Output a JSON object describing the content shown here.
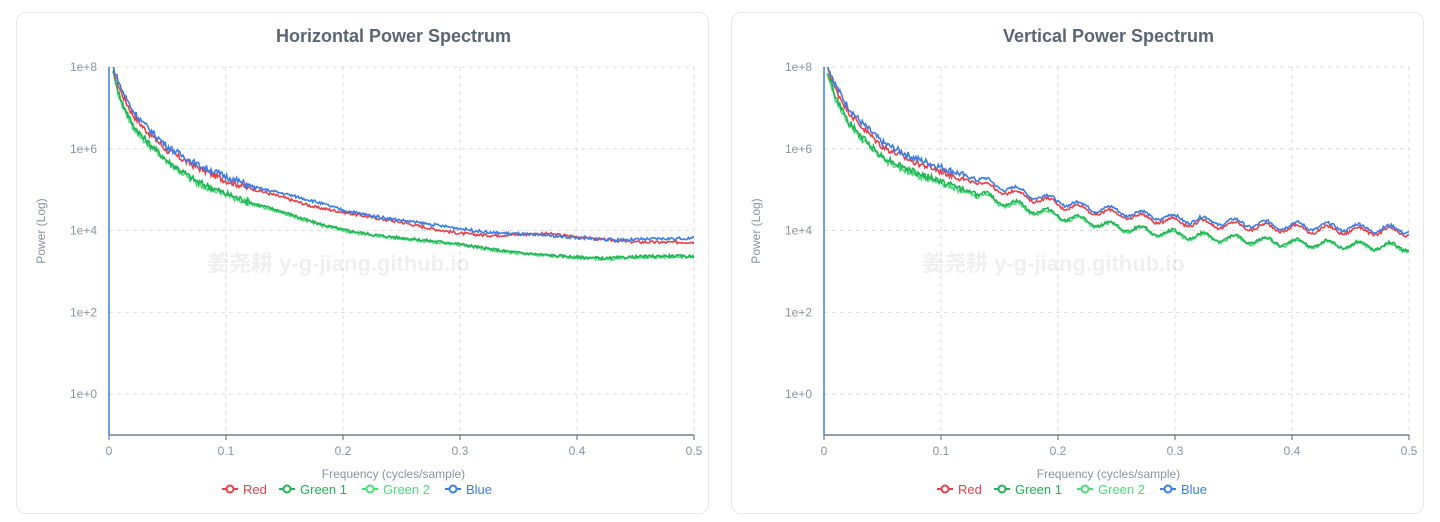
{
  "watermark": "姜尧耕 y-g-jiang.github.io",
  "colors": {
    "red": "#e84149",
    "green1": "#22b455",
    "green2": "#4ddc7a",
    "blue": "#3b7de9",
    "grid": "#d9dde2",
    "axis": "#5b6574"
  },
  "chart_data": [
    {
      "type": "line",
      "title": "Horizontal Power Spectrum",
      "xlabel": "Frequency (cycles/sample)",
      "ylabel": "Power (Log)",
      "yscale": "log",
      "xlim": [
        0,
        0.5
      ],
      "ylim_exp": [
        -1,
        8
      ],
      "xticks": [
        0,
        0.1,
        0.2,
        0.3,
        0.4,
        0.5
      ],
      "xtick_labels": [
        "0",
        "0.1",
        "0.2",
        "0.3",
        "0.4",
        "0.5"
      ],
      "yticks_exp": [
        0,
        2,
        4,
        6,
        8
      ],
      "ytick_labels": [
        "1e+0",
        "1e+2",
        "1e+4",
        "1e+6",
        "1e+8"
      ],
      "legend": [
        "Red",
        "Green 1",
        "Green 2",
        "Blue"
      ],
      "x": [
        0.003,
        0.01,
        0.02,
        0.03,
        0.05,
        0.075,
        0.1,
        0.125,
        0.15,
        0.175,
        0.2,
        0.225,
        0.25,
        0.275,
        0.3,
        0.325,
        0.35,
        0.375,
        0.4,
        0.425,
        0.45,
        0.475,
        0.5
      ],
      "series": [
        {
          "name": "Red",
          "color": "#e84149",
          "log10_values": [
            8.0,
            7.4,
            6.85,
            6.5,
            5.95,
            5.55,
            5.22,
            5.0,
            4.8,
            4.58,
            4.45,
            4.32,
            4.2,
            4.05,
            3.93,
            3.88,
            3.9,
            3.92,
            3.85,
            3.77,
            3.72,
            3.71,
            3.72
          ]
        },
        {
          "name": "Green 1",
          "color": "#22b455",
          "log10_values": [
            7.95,
            7.2,
            6.6,
            6.25,
            5.7,
            5.2,
            4.9,
            4.65,
            4.45,
            4.2,
            4.02,
            3.9,
            3.82,
            3.75,
            3.67,
            3.55,
            3.46,
            3.4,
            3.35,
            3.32,
            3.36,
            3.38,
            3.37
          ]
        },
        {
          "name": "Green 2",
          "color": "#4ddc7a",
          "log10_values": [
            7.9,
            7.15,
            6.55,
            6.2,
            5.66,
            5.17,
            4.87,
            4.62,
            4.42,
            4.18,
            4.0,
            3.88,
            3.8,
            3.73,
            3.65,
            3.53,
            3.44,
            3.38,
            3.34,
            3.3,
            3.34,
            3.36,
            3.35
          ]
        },
        {
          "name": "Blue",
          "color": "#3b7de9",
          "log10_values": [
            8.05,
            7.5,
            6.95,
            6.6,
            6.05,
            5.62,
            5.32,
            5.05,
            4.9,
            4.72,
            4.5,
            4.36,
            4.25,
            4.15,
            4.05,
            3.95,
            3.92,
            3.88,
            3.82,
            3.78,
            3.78,
            3.8,
            3.81
          ]
        }
      ]
    },
    {
      "type": "line",
      "title": "Vertical Power Spectrum",
      "xlabel": "Frequency (cycles/sample)",
      "ylabel": "Power (Log)",
      "yscale": "log",
      "xlim": [
        0,
        0.5
      ],
      "ylim_exp": [
        -1,
        8
      ],
      "xticks": [
        0,
        0.1,
        0.2,
        0.3,
        0.4,
        0.5
      ],
      "xtick_labels": [
        "0",
        "0.1",
        "0.2",
        "0.3",
        "0.4",
        "0.5"
      ],
      "yticks_exp": [
        0,
        2,
        4,
        6,
        8
      ],
      "ytick_labels": [
        "1e+0",
        "1e+2",
        "1e+4",
        "1e+6",
        "1e+8"
      ],
      "legend": [
        "Red",
        "Green 1",
        "Green 2",
        "Blue"
      ],
      "x": [
        0.003,
        0.01,
        0.02,
        0.03,
        0.05,
        0.075,
        0.1,
        0.125,
        0.15,
        0.175,
        0.2,
        0.225,
        0.25,
        0.275,
        0.3,
        0.325,
        0.35,
        0.375,
        0.4,
        0.425,
        0.45,
        0.475,
        0.5
      ],
      "series": [
        {
          "name": "Red",
          "color": "#e84149",
          "log10_values": [
            8.0,
            7.45,
            6.95,
            6.6,
            6.05,
            5.7,
            5.45,
            5.2,
            5.0,
            4.82,
            4.65,
            4.5,
            4.4,
            4.3,
            4.22,
            4.17,
            4.12,
            4.08,
            4.05,
            4.02,
            4.0,
            3.98,
            3.95
          ]
        },
        {
          "name": "Green 1",
          "color": "#22b455",
          "log10_values": [
            7.9,
            7.25,
            6.7,
            6.35,
            5.8,
            5.45,
            5.2,
            4.95,
            4.75,
            4.55,
            4.38,
            4.22,
            4.1,
            4.0,
            3.92,
            3.85,
            3.8,
            3.75,
            3.7,
            3.68,
            3.65,
            3.62,
            3.6
          ]
        },
        {
          "name": "Green 2",
          "color": "#4ddc7a",
          "log10_values": [
            7.85,
            7.2,
            6.65,
            6.3,
            5.75,
            5.4,
            5.15,
            4.9,
            4.7,
            4.5,
            4.35,
            4.2,
            4.08,
            3.98,
            3.9,
            3.83,
            3.78,
            3.73,
            3.68,
            3.66,
            3.63,
            3.6,
            3.58
          ]
        },
        {
          "name": "Blue",
          "color": "#3b7de9",
          "log10_values": [
            8.05,
            7.55,
            7.05,
            6.7,
            6.15,
            5.8,
            5.55,
            5.3,
            5.1,
            4.9,
            4.73,
            4.58,
            4.48,
            4.38,
            4.3,
            4.25,
            4.2,
            4.15,
            4.12,
            4.1,
            4.08,
            4.05,
            4.02
          ]
        }
      ]
    }
  ]
}
